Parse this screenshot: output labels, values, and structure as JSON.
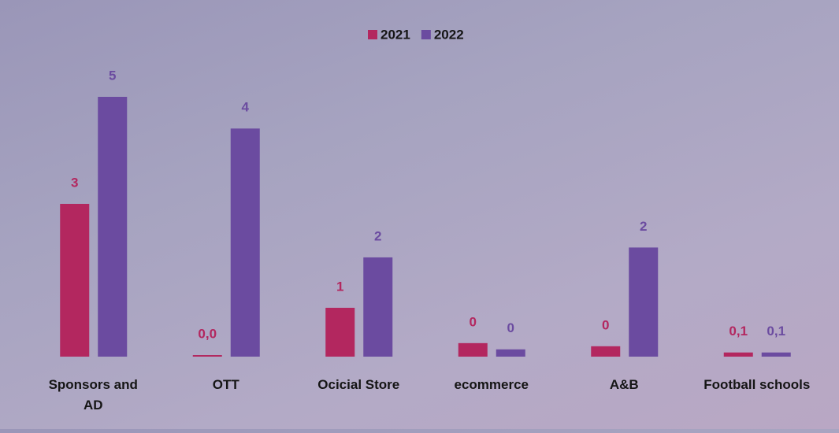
{
  "chart_data": {
    "type": "bar",
    "categories": [
      "Sponsors and AD",
      "OTT",
      "Ocicial Store",
      "ecommerce",
      "A&B",
      "Football schools"
    ],
    "series": [
      {
        "name": "2021",
        "color": "#b3275f",
        "values": [
          2.94,
          0.03,
          0.94,
          0.26,
          0.2,
          0.08
        ],
        "value_labels": [
          "3",
          "0,0",
          "1",
          "0",
          "0",
          "0,1"
        ]
      },
      {
        "name": "2022",
        "color": "#6b4ba0",
        "values": [
          5.0,
          4.39,
          1.91,
          0.14,
          2.1,
          0.08
        ],
        "value_labels": [
          "5",
          "4",
          "2",
          "0",
          "2",
          "0,1"
        ]
      }
    ]
  }
}
